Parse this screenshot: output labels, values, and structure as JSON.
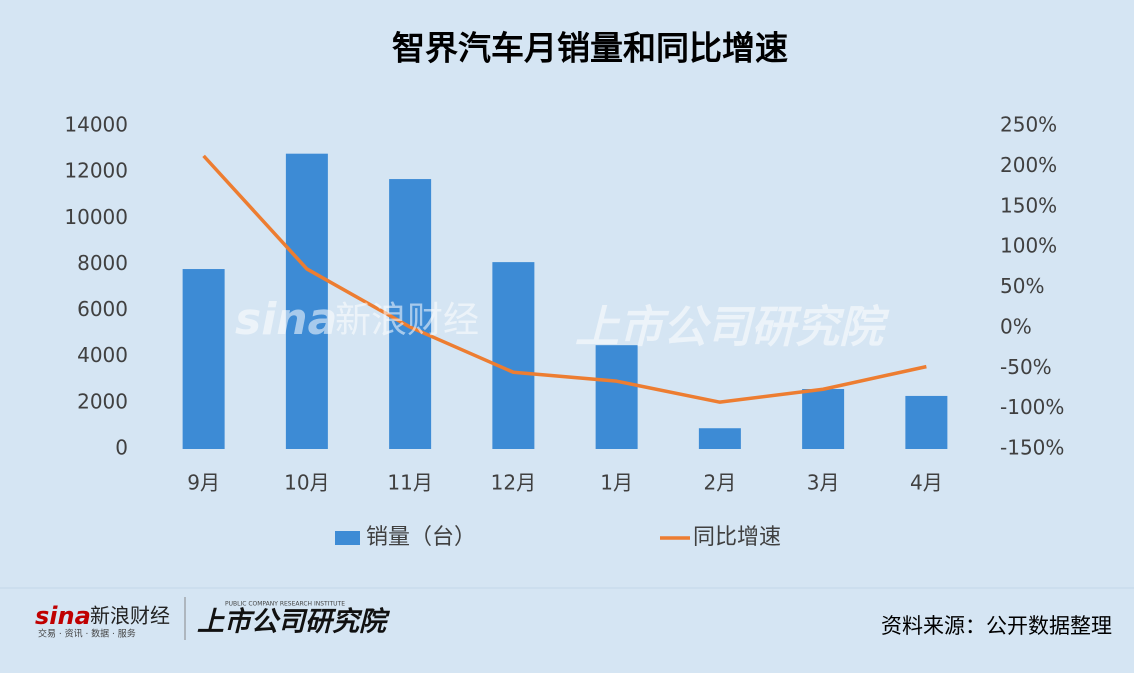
{
  "chart_data": {
    "type": "bar-line",
    "title": "智界汽车月销量和同比增速",
    "categories": [
      "9月",
      "10月",
      "11月",
      "12月",
      "1月",
      "2月",
      "3月",
      "4月"
    ],
    "series": [
      {
        "name": "销量（台）",
        "type": "bar",
        "color": "#3d8bd5",
        "values": [
          7800,
          12800,
          11700,
          8100,
          4500,
          900,
          2600,
          2300
        ]
      },
      {
        "name": "同比增速",
        "type": "line",
        "axis": "y2",
        "color": "#ed7d31",
        "values": [
          213,
          73,
          1,
          -55,
          -66,
          -92,
          -76,
          -48
        ]
      }
    ],
    "ylim": [
      0,
      14000
    ],
    "yticks": [
      0,
      2000,
      4000,
      6000,
      8000,
      10000,
      12000,
      14000
    ],
    "y2lim": [
      -150,
      250
    ],
    "y2ticks": [
      {
        "value": -150,
        "label": "-150%"
      },
      {
        "value": -100,
        "label": "-100%"
      },
      {
        "value": -50,
        "label": "-50%"
      },
      {
        "value": 0,
        "label": "0%"
      },
      {
        "value": 50,
        "label": "50%"
      },
      {
        "value": 100,
        "label": "100%"
      },
      {
        "value": 150,
        "label": "150%"
      },
      {
        "value": 200,
        "label": "200%"
      },
      {
        "value": 250,
        "label": "250%"
      }
    ],
    "legend": "bottom",
    "grid": false
  },
  "footer": {
    "source": "资料来源：公开数据整理",
    "sina_logo": "sina",
    "sina_name": "新浪财经",
    "sina_slogan": "交易 · 资讯 · 数据 · 服务",
    "institute": "上市公司研究院",
    "institute_en": "PUBLIC COMPANY RESEARCH INSTITUTE"
  }
}
